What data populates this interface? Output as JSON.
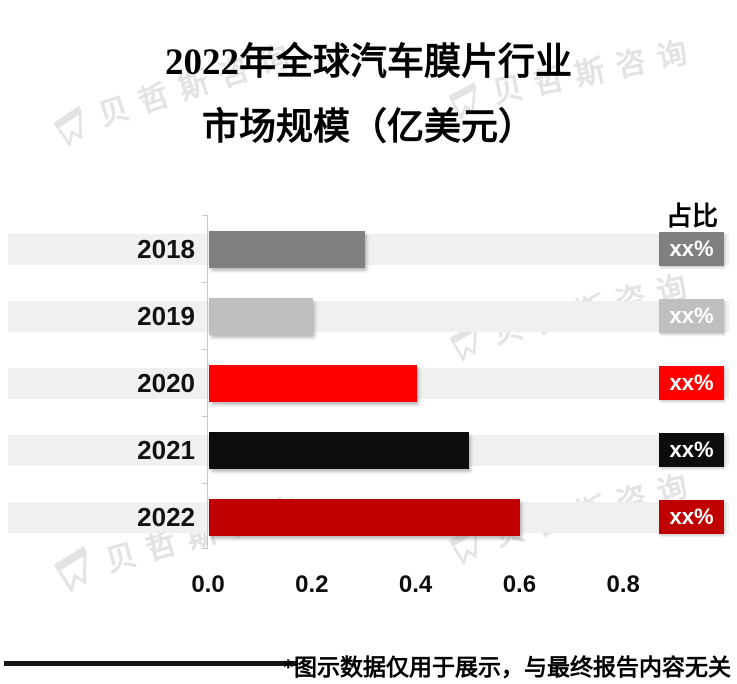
{
  "title": {
    "line1": "2022年全球汽车膜片行业",
    "line2": "市场规模（亿美元）"
  },
  "share": {
    "header": "占比"
  },
  "watermark": {
    "text": "贝哲斯咨询"
  },
  "footnote": "*图示数据仅用于展示，与最终报告内容无关",
  "chart_data": {
    "type": "bar",
    "orientation": "horizontal",
    "title": "2022年全球汽车膜片行业市场规模（亿美元）",
    "categories": [
      "2018",
      "2019",
      "2020",
      "2021",
      "2022"
    ],
    "values": [
      0.3,
      0.2,
      0.4,
      0.5,
      0.6
    ],
    "unit": "亿美元",
    "bar_colors": [
      "#808080",
      "#BFBFBF",
      "#FF0000",
      "#0D0D0D",
      "#C00000"
    ],
    "share_labels": [
      "xx%",
      "xx%",
      "xx%",
      "xx%",
      "xx%"
    ],
    "share_column_header": "占比",
    "x_ticks": [
      "0.0",
      "0.2",
      "0.4",
      "0.6",
      "0.8"
    ],
    "xlim": [
      0,
      1.0
    ],
    "row_background": "#F0F0F0",
    "gridlines": false,
    "legend": false
  }
}
